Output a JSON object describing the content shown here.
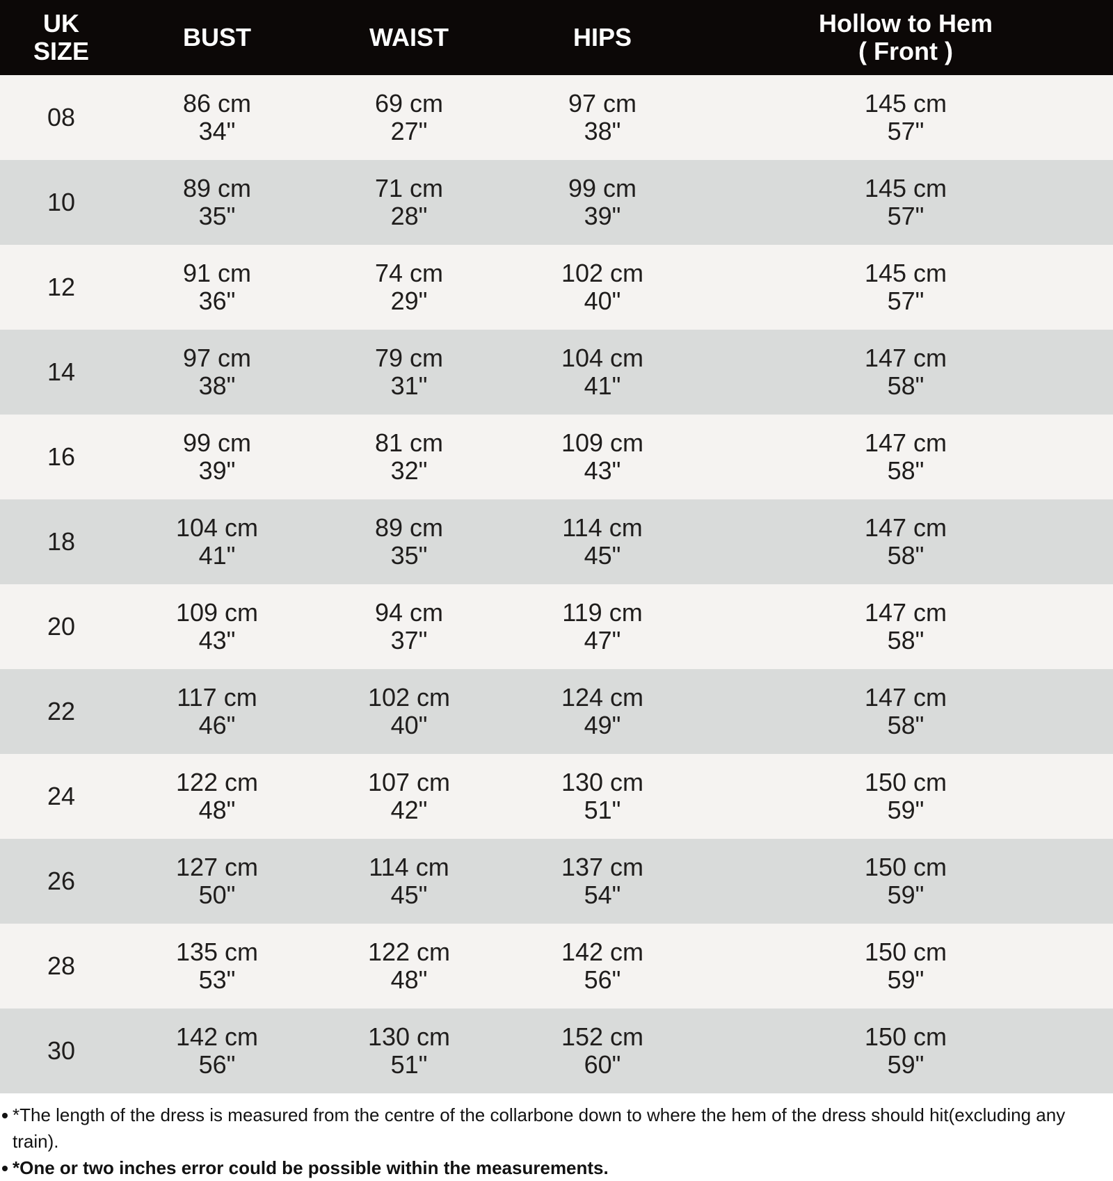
{
  "chart_data": {
    "type": "table",
    "columns": [
      "UK SIZE",
      "BUST",
      "WAIST",
      "HIPS",
      "Hollow to Hem ( Front )"
    ],
    "header_lines": [
      {
        "key": "uk-size",
        "lines": [
          "UK",
          "SIZE"
        ]
      },
      {
        "key": "bust",
        "lines": [
          "BUST"
        ]
      },
      {
        "key": "waist",
        "lines": [
          "WAIST"
        ]
      },
      {
        "key": "hips",
        "lines": [
          "HIPS"
        ]
      },
      {
        "key": "hollow-to-hem",
        "lines": [
          "Hollow to Hem",
          "( Front )"
        ]
      }
    ],
    "rows": [
      {
        "uk_size": "08",
        "bust": [
          "86 cm",
          "34\""
        ],
        "waist": [
          "69 cm",
          "27\""
        ],
        "hips": [
          "97 cm",
          "38\""
        ],
        "hollow_to_hem": [
          "145 cm",
          "57\""
        ]
      },
      {
        "uk_size": "10",
        "bust": [
          "89 cm",
          "35\""
        ],
        "waist": [
          "71 cm",
          "28\""
        ],
        "hips": [
          "99 cm",
          "39\""
        ],
        "hollow_to_hem": [
          "145 cm",
          "57\""
        ]
      },
      {
        "uk_size": "12",
        "bust": [
          "91 cm",
          "36\""
        ],
        "waist": [
          "74 cm",
          "29\""
        ],
        "hips": [
          "102 cm",
          "40\""
        ],
        "hollow_to_hem": [
          "145 cm",
          "57\""
        ]
      },
      {
        "uk_size": "14",
        "bust": [
          "97 cm",
          "38\""
        ],
        "waist": [
          "79 cm",
          "31\""
        ],
        "hips": [
          "104 cm",
          "41\""
        ],
        "hollow_to_hem": [
          "147 cm",
          "58\""
        ]
      },
      {
        "uk_size": "16",
        "bust": [
          "99 cm",
          "39\""
        ],
        "waist": [
          "81 cm",
          "32\""
        ],
        "hips": [
          "109 cm",
          "43\""
        ],
        "hollow_to_hem": [
          "147 cm",
          "58\""
        ]
      },
      {
        "uk_size": "18",
        "bust": [
          "104 cm",
          "41\""
        ],
        "waist": [
          "89 cm",
          "35\""
        ],
        "hips": [
          "114 cm",
          "45\""
        ],
        "hollow_to_hem": [
          "147 cm",
          "58\""
        ]
      },
      {
        "uk_size": "20",
        "bust": [
          "109 cm",
          "43\""
        ],
        "waist": [
          "94 cm",
          "37\""
        ],
        "hips": [
          "119 cm",
          "47\""
        ],
        "hollow_to_hem": [
          "147 cm",
          "58\""
        ]
      },
      {
        "uk_size": "22",
        "bust": [
          "117 cm",
          "46\""
        ],
        "waist": [
          "102 cm",
          "40\""
        ],
        "hips": [
          "124 cm",
          "49\""
        ],
        "hollow_to_hem": [
          "147 cm",
          "58\""
        ]
      },
      {
        "uk_size": "24",
        "bust": [
          "122 cm",
          "48\""
        ],
        "waist": [
          "107 cm",
          "42\""
        ],
        "hips": [
          "130 cm",
          "51\""
        ],
        "hollow_to_hem": [
          "150 cm",
          "59\""
        ]
      },
      {
        "uk_size": "26",
        "bust": [
          "127 cm",
          "50\""
        ],
        "waist": [
          "114 cm",
          "45\""
        ],
        "hips": [
          "137 cm",
          "54\""
        ],
        "hollow_to_hem": [
          "150 cm",
          "59\""
        ]
      },
      {
        "uk_size": "28",
        "bust": [
          "135 cm",
          "53\""
        ],
        "waist": [
          "122 cm",
          "48\""
        ],
        "hips": [
          "142 cm",
          "56\""
        ],
        "hollow_to_hem": [
          "150 cm",
          "59\""
        ]
      },
      {
        "uk_size": "30",
        "bust": [
          "142 cm",
          "56\""
        ],
        "waist": [
          "130 cm",
          "51\""
        ],
        "hips": [
          "152 cm",
          "60\""
        ],
        "hollow_to_hem": [
          "150 cm",
          "59\""
        ]
      }
    ]
  },
  "notes": [
    {
      "text": "*The length of the dress is measured from the centre of the collarbone down to where the hem of the dress should hit(excluding any train).",
      "bold": false
    },
    {
      "text": "*One or two inches error could be possible within the measurements.",
      "bold": true
    }
  ],
  "colors": {
    "header_bg": "#0c0807",
    "header_text": "#ffffff",
    "row_light": "#f5f3f1",
    "row_alt": "#d9dbda",
    "cell_text": "#1f1d1c",
    "note_text": "#121212",
    "page_bg": "#ffffff"
  }
}
